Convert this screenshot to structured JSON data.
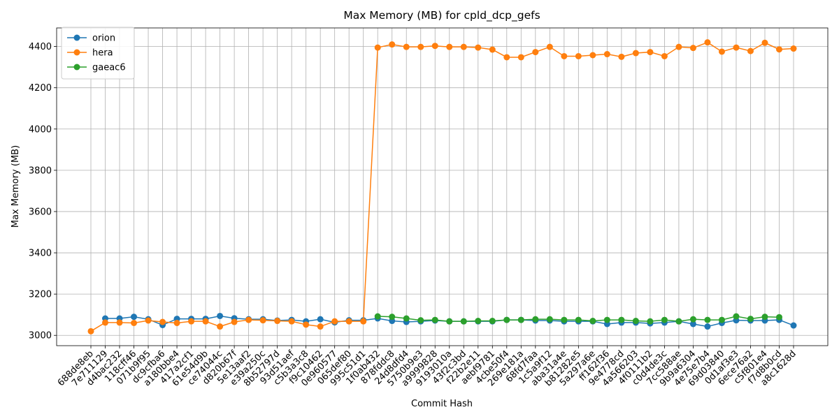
{
  "chart_data": {
    "type": "line",
    "title": "Max Memory (MB) for cpld_dcp_gefs",
    "xlabel": "Commit Hash",
    "ylabel": "Max Memory (MB)",
    "ylim": [
      2950,
      4490
    ],
    "yticks": [
      3000,
      3200,
      3400,
      3600,
      3800,
      4000,
      4200,
      4400
    ],
    "grid": true,
    "legend_position": "top-left",
    "categories": [
      "688de8eb",
      "7e711129",
      "d4bac232",
      "118cff46",
      "071b9f95",
      "dc9cfba6",
      "a180bbe4",
      "417a2cf1",
      "61e54d9b",
      "ce74044c",
      "d820b67f",
      "5e13aaf2",
      "e39a250c",
      "8b52797d",
      "93d51aef",
      "c5b3a3c8",
      "f9c10462",
      "0e960577",
      "065def80",
      "995c51d1",
      "1f0ab432",
      "878fddc8",
      "24d8dfd4",
      "5750b9e3",
      "a9999828",
      "9193010a",
      "43f2c3bd",
      "f22b2e11",
      "aebf9781",
      "4cbe50f4",
      "269e181a",
      "68fd7faa",
      "1c5a9f12",
      "aba31a4e",
      "b81282e5",
      "5a297a6e",
      "ff162f36",
      "9e4778cd",
      "4a566203",
      "4f0111b2",
      "c0d4de3c",
      "7cc588ae",
      "9b9a6304",
      "4e75e7b4",
      "69d03840",
      "0d1af3e3",
      "6ece76a2",
      "c5f801e4",
      "f7d8b0cd",
      "a8c1628d"
    ],
    "series": [
      {
        "name": "orion",
        "color": "#1f77b4",
        "values": [
          null,
          3082,
          3082,
          3090,
          3078,
          3050,
          3080,
          3080,
          3080,
          3094,
          3083,
          3078,
          3078,
          3072,
          3075,
          3068,
          3078,
          3063,
          3073,
          3073,
          3082,
          3070,
          3065,
          3068,
          3072,
          3068,
          3068,
          3068,
          3068,
          3075,
          3075,
          3072,
          3072,
          3068,
          3068,
          3068,
          3055,
          3062,
          3062,
          3058,
          3062,
          3068,
          3055,
          3043,
          3060,
          3073,
          3072,
          3072,
          3075,
          3048
        ]
      },
      {
        "name": "hera",
        "color": "#ff7f0e",
        "values": [
          3020,
          3062,
          3062,
          3060,
          3072,
          3065,
          3060,
          3068,
          3068,
          3043,
          3065,
          3075,
          3073,
          3070,
          3068,
          3052,
          3043,
          3068,
          3068,
          3068,
          4395,
          4410,
          4398,
          4398,
          4403,
          4398,
          4398,
          4395,
          4385,
          4348,
          4348,
          4373,
          4398,
          4353,
          4353,
          4358,
          4363,
          4350,
          4368,
          4373,
          4353,
          4398,
          4393,
          4420,
          4375,
          4395,
          4378,
          4418,
          4386,
          4390
        ]
      },
      {
        "name": "gaeac6",
        "color": "#2ca02c",
        "values": [
          null,
          null,
          null,
          null,
          null,
          null,
          null,
          null,
          null,
          null,
          null,
          null,
          null,
          null,
          null,
          null,
          null,
          null,
          null,
          null,
          3092,
          3090,
          3082,
          3073,
          3075,
          3068,
          3068,
          3070,
          3070,
          3075,
          3075,
          3078,
          3078,
          3075,
          3075,
          3070,
          3075,
          3075,
          3070,
          3068,
          3075,
          3068,
          3078,
          3075,
          3075,
          3092,
          3080,
          3090,
          3088,
          null
        ]
      }
    ]
  }
}
